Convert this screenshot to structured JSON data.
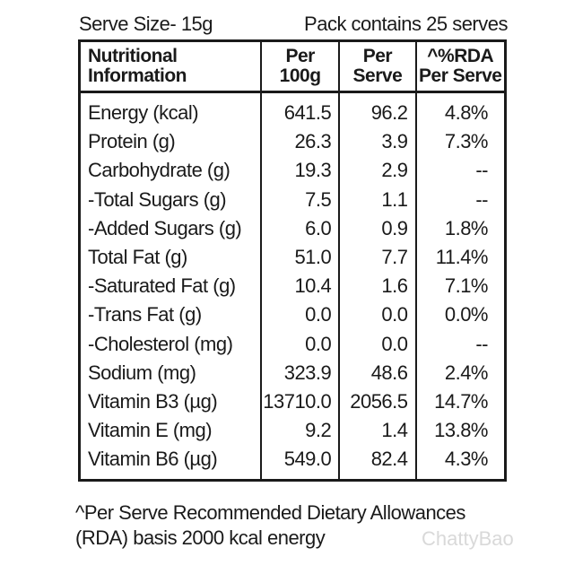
{
  "header": {
    "serve_size": "Serve Size- 15g",
    "pack_contains": "Pack contains 25 serves"
  },
  "table": {
    "columns": [
      {
        "line1": "Nutritional",
        "line2": "Information"
      },
      {
        "line1": "Per",
        "line2": "100g"
      },
      {
        "line1": "Per",
        "line2": "Serve"
      },
      {
        "line1": "^%RDA",
        "line2": "Per Serve"
      }
    ],
    "rows": [
      {
        "name": "Energy (kcal)",
        "per100g": "641.5",
        "perServe": "96.2",
        "rda": "4.8%"
      },
      {
        "name": "Protein (g)",
        "per100g": "26.3",
        "perServe": "3.9",
        "rda": "7.3%"
      },
      {
        "name": "Carbohydrate (g)",
        "per100g": "19.3",
        "perServe": "2.9",
        "rda": "--"
      },
      {
        "name": "-Total Sugars (g)",
        "per100g": "7.5",
        "perServe": "1.1",
        "rda": "--"
      },
      {
        "name": "-Added Sugars (g)",
        "per100g": "6.0",
        "perServe": "0.9",
        "rda": "1.8%"
      },
      {
        "name": "Total Fat (g)",
        "per100g": "51.0",
        "perServe": "7.7",
        "rda": "11.4%"
      },
      {
        "name": "-Saturated Fat (g)",
        "per100g": "10.4",
        "perServe": "1.6",
        "rda": "7.1%"
      },
      {
        "name": "-Trans Fat (g)",
        "per100g": "0.0",
        "perServe": "0.0",
        "rda": "0.0%"
      },
      {
        "name": "-Cholesterol (mg)",
        "per100g": "0.0",
        "perServe": "0.0",
        "rda": "--"
      },
      {
        "name": "Sodium (mg)",
        "per100g": "323.9",
        "perServe": "48.6",
        "rda": "2.4%"
      },
      {
        "name": "Vitamin B3 (µg)",
        "per100g": "13710.0",
        "perServe": "2056.5",
        "rda": "14.7%"
      },
      {
        "name": "Vitamin E (mg)",
        "per100g": "9.2",
        "perServe": "1.4",
        "rda": "13.8%"
      },
      {
        "name": "Vitamin B6 (µg)",
        "per100g": "549.0",
        "perServe": "82.4",
        "rda": "4.3%"
      }
    ]
  },
  "footnote": {
    "line1": "^Per Serve Recommended Dietary Allowances",
    "line2": "(RDA) basis 2000 kcal energy"
  },
  "watermark": "ChattyBao"
}
